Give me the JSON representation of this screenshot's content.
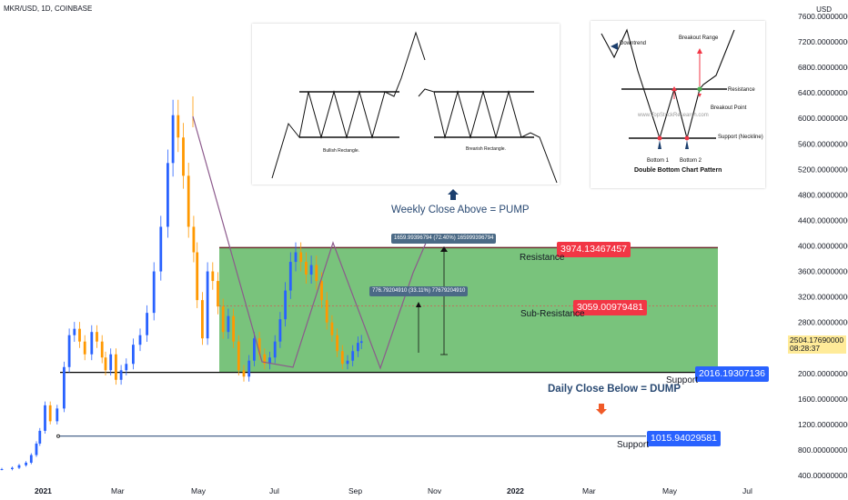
{
  "header": {
    "symbol": "MKR/USD, 1D, COINBASE",
    "currency": "USD"
  },
  "chart_data": {
    "type": "candlestick",
    "yaxis": {
      "ticks": [
        "7600.00000000",
        "7200.00000000",
        "6800.00000000",
        "6400.00000000",
        "6000.00000000",
        "5600.00000000",
        "5200.00000000",
        "4800.00000000",
        "4400.00000000",
        "4000.00000000",
        "3600.00000000",
        "3200.00000000",
        "2800.00000000",
        "2000.00000000",
        "1600.00000000",
        "1200.00000000",
        "800.00000000",
        "400.00000000"
      ],
      "range": [
        0,
        7800
      ]
    },
    "xaxis": {
      "ticks": [
        {
          "label": "2021",
          "bold": true
        },
        {
          "label": "Mar",
          "bold": false
        },
        {
          "label": "May",
          "bold": false
        },
        {
          "label": "Jul",
          "bold": false
        },
        {
          "label": "Sep",
          "bold": false
        },
        {
          "label": "Nov",
          "bold": false
        },
        {
          "label": "2022",
          "bold": true
        },
        {
          "label": "Mar",
          "bold": false
        },
        {
          "label": "May",
          "bold": false
        },
        {
          "label": "Jul",
          "bold": false
        }
      ]
    },
    "current_price": {
      "value": "2504.17690000",
      "countdown": "08:28:37"
    },
    "price_path": [
      [
        0,
        500
      ],
      [
        6,
        520
      ],
      [
        10,
        560
      ],
      [
        14,
        600
      ],
      [
        17,
        720
      ],
      [
        20,
        900
      ],
      [
        22,
        1100
      ],
      [
        25,
        1500
      ],
      [
        28,
        1250
      ],
      [
        32,
        1450
      ],
      [
        36,
        2100
      ],
      [
        39,
        2600
      ],
      [
        42,
        2700
      ],
      [
        45,
        2500
      ],
      [
        48,
        2300
      ],
      [
        52,
        2650
      ],
      [
        55,
        2500
      ],
      [
        58,
        2250
      ],
      [
        60,
        2050
      ],
      [
        63,
        2300
      ],
      [
        66,
        1900
      ],
      [
        69,
        2050
      ],
      [
        72,
        2150
      ],
      [
        76,
        2450
      ],
      [
        80,
        2600
      ],
      [
        84,
        2950
      ],
      [
        88,
        3600
      ],
      [
        92,
        4300
      ],
      [
        96,
        5300
      ],
      [
        99,
        6050
      ],
      [
        102,
        5700
      ],
      [
        105,
        5100
      ],
      [
        108,
        4300
      ],
      [
        111,
        3900
      ],
      [
        113,
        3150
      ],
      [
        116,
        2550
      ],
      [
        119,
        3600
      ],
      [
        122,
        3450
      ],
      [
        125,
        3050
      ],
      [
        128,
        2650
      ],
      [
        131,
        2900
      ],
      [
        134,
        2500
      ],
      [
        137,
        2050
      ],
      [
        140,
        1950
      ],
      [
        143,
        2200
      ],
      [
        146,
        2550
      ],
      [
        149,
        2300
      ],
      [
        152,
        2150
      ],
      [
        155,
        2250
      ],
      [
        158,
        2500
      ],
      [
        161,
        2850
      ],
      [
        164,
        3300
      ],
      [
        167,
        3750
      ],
      [
        170,
        3900
      ],
      [
        173,
        3750
      ],
      [
        176,
        3550
      ],
      [
        179,
        3700
      ],
      [
        182,
        3450
      ],
      [
        185,
        3150
      ],
      [
        188,
        2800
      ],
      [
        191,
        2600
      ],
      [
        194,
        2350
      ],
      [
        197,
        2150
      ],
      [
        200,
        2200
      ],
      [
        203,
        2350
      ],
      [
        206,
        2480
      ],
      [
        208,
        2504
      ]
    ],
    "levels": [
      {
        "name": "Resistance",
        "value": "3974.13467457",
        "color": "#f23645"
      },
      {
        "name": "Sub-Resistance",
        "value": "3059.00979481",
        "color": "#f23645"
      },
      {
        "name": "Support",
        "value": "2016.19307136",
        "color": "#2962ff"
      },
      {
        "name": "Support",
        "value": "1015.94029581",
        "color": "#2962ff"
      }
    ],
    "measurements": [
      {
        "text": "1659.99396794 (72.40%) 165999396794"
      },
      {
        "text": "776.79204910 (33.11%) 77679204910"
      }
    ],
    "notes": [
      {
        "text": "Weekly Close Above = PUMP",
        "color": "#2a4a73"
      },
      {
        "text": "Daily Close Below = DUMP",
        "color": "#2a4a73"
      }
    ]
  },
  "insets": {
    "rectangle": {
      "bullish_label": "Bullish Rectangle.",
      "bearish_label": "Brearish Rectangle."
    },
    "double_bottom": {
      "title": "Double Bottom Chart Pattern",
      "downtrend": "Downtrend",
      "breakout_range": "Breakout Range",
      "resistance": "Resistance",
      "breakout_point": "Breakout Point",
      "support": "Support (Neckline)",
      "bottom1": "Bottom 1",
      "bottom2": "Bottom 2",
      "watermark": "www.TopStockResearch.com"
    }
  },
  "colors": {
    "up": "#26a69a",
    "down": "#f7525f",
    "candle_up": "#2962ff",
    "candle_down": "#ff9800",
    "range_fill": "#4caf50",
    "arrow_up": "#1c3f6e",
    "arrow_down": "#f05a28"
  }
}
